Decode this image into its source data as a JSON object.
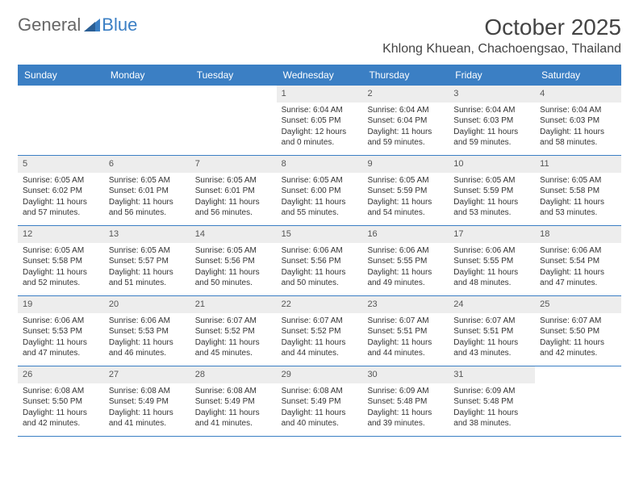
{
  "logo": {
    "text_gray": "General",
    "text_blue": "Blue"
  },
  "title": "October 2025",
  "location": "Khlong Khuean, Chachoengsao, Thailand",
  "colors": {
    "header_bg": "#3b7fc4",
    "header_text": "#ffffff",
    "date_bg": "#ededed",
    "border": "#3b7fc4",
    "body_text": "#333333"
  },
  "typography": {
    "title_fontsize": 28,
    "location_fontsize": 16,
    "dayheader_fontsize": 12,
    "date_fontsize": 11,
    "cell_fontsize": 10
  },
  "day_names": [
    "Sunday",
    "Monday",
    "Tuesday",
    "Wednesday",
    "Thursday",
    "Friday",
    "Saturday"
  ],
  "weeks": [
    [
      {
        "date": "",
        "sunrise": "",
        "sunset": "",
        "daylight": ""
      },
      {
        "date": "",
        "sunrise": "",
        "sunset": "",
        "daylight": ""
      },
      {
        "date": "",
        "sunrise": "",
        "sunset": "",
        "daylight": ""
      },
      {
        "date": "1",
        "sunrise": "Sunrise: 6:04 AM",
        "sunset": "Sunset: 6:05 PM",
        "daylight": "Daylight: 12 hours and 0 minutes."
      },
      {
        "date": "2",
        "sunrise": "Sunrise: 6:04 AM",
        "sunset": "Sunset: 6:04 PM",
        "daylight": "Daylight: 11 hours and 59 minutes."
      },
      {
        "date": "3",
        "sunrise": "Sunrise: 6:04 AM",
        "sunset": "Sunset: 6:03 PM",
        "daylight": "Daylight: 11 hours and 59 minutes."
      },
      {
        "date": "4",
        "sunrise": "Sunrise: 6:04 AM",
        "sunset": "Sunset: 6:03 PM",
        "daylight": "Daylight: 11 hours and 58 minutes."
      }
    ],
    [
      {
        "date": "5",
        "sunrise": "Sunrise: 6:05 AM",
        "sunset": "Sunset: 6:02 PM",
        "daylight": "Daylight: 11 hours and 57 minutes."
      },
      {
        "date": "6",
        "sunrise": "Sunrise: 6:05 AM",
        "sunset": "Sunset: 6:01 PM",
        "daylight": "Daylight: 11 hours and 56 minutes."
      },
      {
        "date": "7",
        "sunrise": "Sunrise: 6:05 AM",
        "sunset": "Sunset: 6:01 PM",
        "daylight": "Daylight: 11 hours and 56 minutes."
      },
      {
        "date": "8",
        "sunrise": "Sunrise: 6:05 AM",
        "sunset": "Sunset: 6:00 PM",
        "daylight": "Daylight: 11 hours and 55 minutes."
      },
      {
        "date": "9",
        "sunrise": "Sunrise: 6:05 AM",
        "sunset": "Sunset: 5:59 PM",
        "daylight": "Daylight: 11 hours and 54 minutes."
      },
      {
        "date": "10",
        "sunrise": "Sunrise: 6:05 AM",
        "sunset": "Sunset: 5:59 PM",
        "daylight": "Daylight: 11 hours and 53 minutes."
      },
      {
        "date": "11",
        "sunrise": "Sunrise: 6:05 AM",
        "sunset": "Sunset: 5:58 PM",
        "daylight": "Daylight: 11 hours and 53 minutes."
      }
    ],
    [
      {
        "date": "12",
        "sunrise": "Sunrise: 6:05 AM",
        "sunset": "Sunset: 5:58 PM",
        "daylight": "Daylight: 11 hours and 52 minutes."
      },
      {
        "date": "13",
        "sunrise": "Sunrise: 6:05 AM",
        "sunset": "Sunset: 5:57 PM",
        "daylight": "Daylight: 11 hours and 51 minutes."
      },
      {
        "date": "14",
        "sunrise": "Sunrise: 6:05 AM",
        "sunset": "Sunset: 5:56 PM",
        "daylight": "Daylight: 11 hours and 50 minutes."
      },
      {
        "date": "15",
        "sunrise": "Sunrise: 6:06 AM",
        "sunset": "Sunset: 5:56 PM",
        "daylight": "Daylight: 11 hours and 50 minutes."
      },
      {
        "date": "16",
        "sunrise": "Sunrise: 6:06 AM",
        "sunset": "Sunset: 5:55 PM",
        "daylight": "Daylight: 11 hours and 49 minutes."
      },
      {
        "date": "17",
        "sunrise": "Sunrise: 6:06 AM",
        "sunset": "Sunset: 5:55 PM",
        "daylight": "Daylight: 11 hours and 48 minutes."
      },
      {
        "date": "18",
        "sunrise": "Sunrise: 6:06 AM",
        "sunset": "Sunset: 5:54 PM",
        "daylight": "Daylight: 11 hours and 47 minutes."
      }
    ],
    [
      {
        "date": "19",
        "sunrise": "Sunrise: 6:06 AM",
        "sunset": "Sunset: 5:53 PM",
        "daylight": "Daylight: 11 hours and 47 minutes."
      },
      {
        "date": "20",
        "sunrise": "Sunrise: 6:06 AM",
        "sunset": "Sunset: 5:53 PM",
        "daylight": "Daylight: 11 hours and 46 minutes."
      },
      {
        "date": "21",
        "sunrise": "Sunrise: 6:07 AM",
        "sunset": "Sunset: 5:52 PM",
        "daylight": "Daylight: 11 hours and 45 minutes."
      },
      {
        "date": "22",
        "sunrise": "Sunrise: 6:07 AM",
        "sunset": "Sunset: 5:52 PM",
        "daylight": "Daylight: 11 hours and 44 minutes."
      },
      {
        "date": "23",
        "sunrise": "Sunrise: 6:07 AM",
        "sunset": "Sunset: 5:51 PM",
        "daylight": "Daylight: 11 hours and 44 minutes."
      },
      {
        "date": "24",
        "sunrise": "Sunrise: 6:07 AM",
        "sunset": "Sunset: 5:51 PM",
        "daylight": "Daylight: 11 hours and 43 minutes."
      },
      {
        "date": "25",
        "sunrise": "Sunrise: 6:07 AM",
        "sunset": "Sunset: 5:50 PM",
        "daylight": "Daylight: 11 hours and 42 minutes."
      }
    ],
    [
      {
        "date": "26",
        "sunrise": "Sunrise: 6:08 AM",
        "sunset": "Sunset: 5:50 PM",
        "daylight": "Daylight: 11 hours and 42 minutes."
      },
      {
        "date": "27",
        "sunrise": "Sunrise: 6:08 AM",
        "sunset": "Sunset: 5:49 PM",
        "daylight": "Daylight: 11 hours and 41 minutes."
      },
      {
        "date": "28",
        "sunrise": "Sunrise: 6:08 AM",
        "sunset": "Sunset: 5:49 PM",
        "daylight": "Daylight: 11 hours and 41 minutes."
      },
      {
        "date": "29",
        "sunrise": "Sunrise: 6:08 AM",
        "sunset": "Sunset: 5:49 PM",
        "daylight": "Daylight: 11 hours and 40 minutes."
      },
      {
        "date": "30",
        "sunrise": "Sunrise: 6:09 AM",
        "sunset": "Sunset: 5:48 PM",
        "daylight": "Daylight: 11 hours and 39 minutes."
      },
      {
        "date": "31",
        "sunrise": "Sunrise: 6:09 AM",
        "sunset": "Sunset: 5:48 PM",
        "daylight": "Daylight: 11 hours and 38 minutes."
      },
      {
        "date": "",
        "sunrise": "",
        "sunset": "",
        "daylight": ""
      }
    ]
  ]
}
